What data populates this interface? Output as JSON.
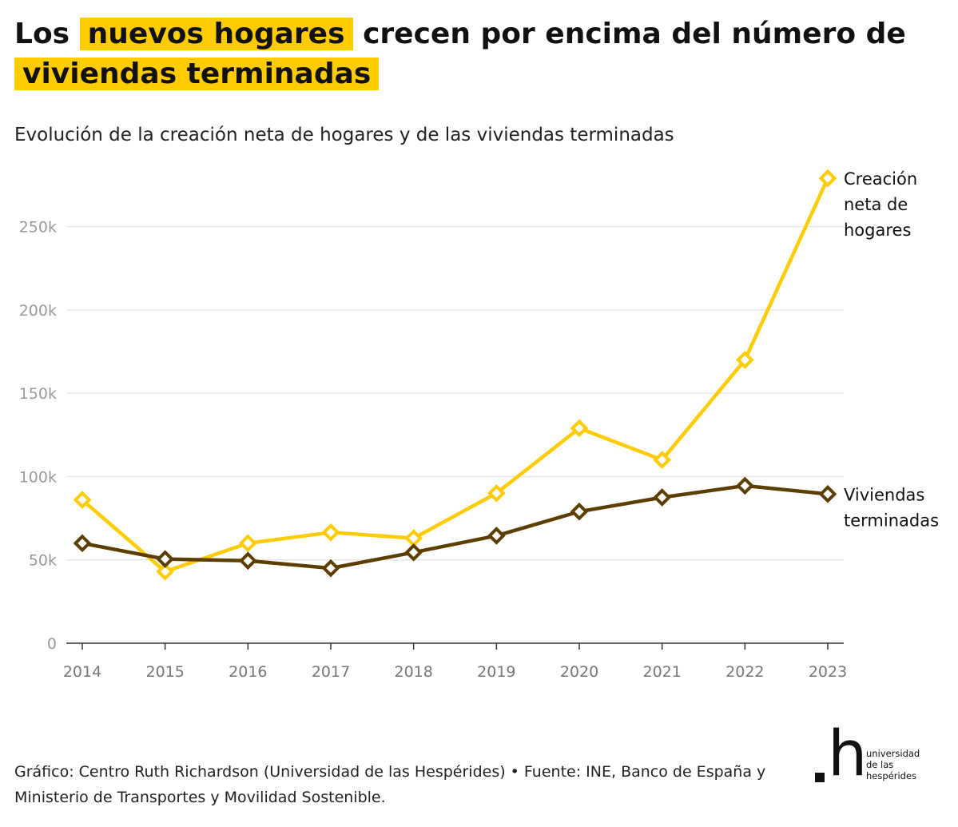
{
  "header": {
    "title_part1": "Los",
    "title_highlight1": "nuevos hogares",
    "title_part2": "crecen por encima del número de",
    "title_highlight2": "viviendas terminadas",
    "subtitle": "Evolución de la creación neta de hogares y de las viviendas terminadas"
  },
  "colors": {
    "highlight": "#FFCC00",
    "hogares": "#FFCC00",
    "viviendas": "#5C3F00",
    "grid": "#e6e6e6",
    "axis": "#333333"
  },
  "chart_data": {
    "type": "line",
    "title": "Los nuevos hogares crecen por encima del número de viviendas terminadas",
    "subtitle": "Evolución de la creación neta de hogares y de las viviendas terminadas",
    "xlabel": "",
    "ylabel": "",
    "x": [
      "2014",
      "2015",
      "2016",
      "2017",
      "2018",
      "2019",
      "2020",
      "2021",
      "2022",
      "2023"
    ],
    "ylim": [
      0,
      280000
    ],
    "yticks": [
      0,
      50000,
      100000,
      150000,
      200000,
      250000
    ],
    "ytick_labels": [
      "0",
      "50k",
      "100k",
      "150k",
      "200k",
      "250k"
    ],
    "grid": true,
    "series": [
      {
        "name": "Creación neta de hogares",
        "label_lines": [
          "Creación",
          "neta de",
          "hogares"
        ],
        "values": [
          86000,
          43000,
          60000,
          66500,
          63000,
          90000,
          129000,
          110000,
          170000,
          279000
        ]
      },
      {
        "name": "Viviendas terminadas",
        "label_lines": [
          "Viviendas",
          "terminadas"
        ],
        "values": [
          60000,
          50500,
          49500,
          45000,
          54500,
          64500,
          79000,
          87500,
          94500,
          89500
        ]
      }
    ]
  },
  "footer": {
    "source": "Gráfico: Centro Ruth Richardson (Universidad de las Hespérides) • Fuente: INE, Banco de España y Ministerio de Transportes y Movilidad Sostenible.",
    "logo_glyph": ".h",
    "logo_words": [
      "universidad",
      "de las",
      "hespérides"
    ]
  }
}
